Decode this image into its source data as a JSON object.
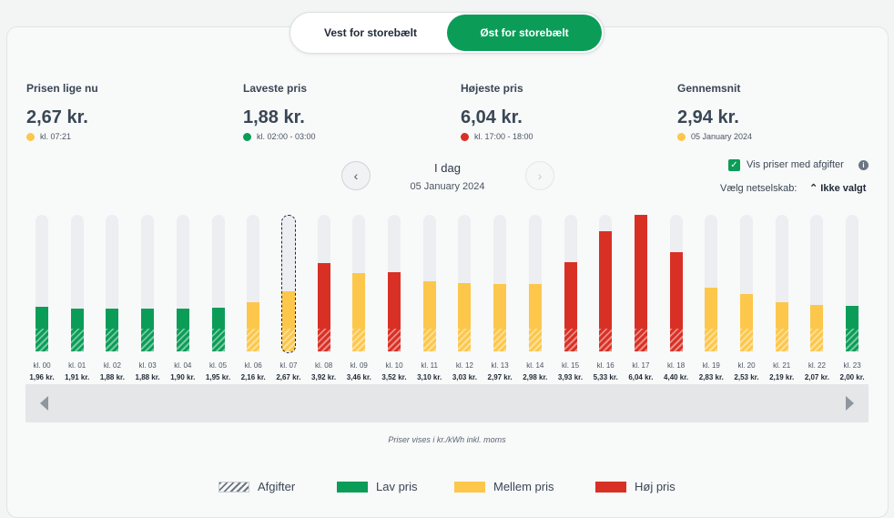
{
  "region_tabs": [
    "Vest for storebælt",
    "Øst for storebælt"
  ],
  "active_tab": "Øst for storebælt",
  "stats": [
    {
      "label": "Prisen lige nu",
      "value": "2,67 kr.",
      "sub": "kl. 07:21",
      "dot_color": "#fcc74b"
    },
    {
      "label": "Laveste pris",
      "value": "1,88 kr.",
      "sub": "kl. 02:00 - 03:00",
      "dot_color": "#0b9d58"
    },
    {
      "label": "Højeste pris",
      "value": "6,04 kr.",
      "sub": "kl. 17:00 - 18:00",
      "dot_color": "#d93025"
    },
    {
      "label": "Gennemsnit",
      "value": "2,94 kr.",
      "sub": "05 January 2024",
      "dot_color": "#fcc74b"
    }
  ],
  "day": {
    "title": "I dag",
    "date": "05 January 2024",
    "prev_icon": "‹",
    "next_icon": "›"
  },
  "options": {
    "show_fees_label": "Vis priser med afgifter",
    "show_fees_checked": true,
    "check_icon": "✓",
    "info_icon": "i",
    "net_label": "Vælg netselskab:",
    "net_value": "Ikke valgt",
    "net_icon": "⌃"
  },
  "colors": {
    "low": "#0b9d58",
    "mid": "#fcc74b",
    "high": "#d93025",
    "accent": "#0b9d58"
  },
  "chart_data": {
    "type": "bar",
    "categories": [
      "kl. 00",
      "kl. 01",
      "kl. 02",
      "kl. 03",
      "kl. 04",
      "kl. 05",
      "kl. 06",
      "kl. 07",
      "kl. 08",
      "kl. 09",
      "kl. 10",
      "kl. 11",
      "kl. 12",
      "kl. 13",
      "kl. 14",
      "kl. 15",
      "kl. 16",
      "kl. 17",
      "kl. 18",
      "kl. 19",
      "kl. 20",
      "kl. 21",
      "kl. 22",
      "kl. 23"
    ],
    "values": [
      1.96,
      1.91,
      1.88,
      1.88,
      1.9,
      1.95,
      2.16,
      2.67,
      3.92,
      3.46,
      3.52,
      3.1,
      3.03,
      2.97,
      2.98,
      3.93,
      5.33,
      6.04,
      4.4,
      2.83,
      2.53,
      2.19,
      2.07,
      2.0
    ],
    "value_labels": [
      "1,96 kr.",
      "1,91 kr.",
      "1,88 kr.",
      "1,88 kr.",
      "1,90 kr.",
      "1,95 kr.",
      "2,16 kr.",
      "2,67 kr.",
      "3,92 kr.",
      "3,46 kr.",
      "3,52 kr.",
      "3,10 kr.",
      "3,03 kr.",
      "2,97 kr.",
      "2,98 kr.",
      "3,93 kr.",
      "5,33 kr.",
      "6,04 kr.",
      "4,40 kr.",
      "2,83 kr.",
      "2,53 kr.",
      "2,19 kr.",
      "2,07 kr.",
      "2,00 kr."
    ],
    "levels": [
      "low",
      "low",
      "low",
      "low",
      "low",
      "low",
      "mid",
      "mid",
      "high",
      "mid",
      "high",
      "mid",
      "mid",
      "mid",
      "mid",
      "high",
      "high",
      "high",
      "high",
      "mid",
      "mid",
      "mid",
      "mid",
      "low"
    ],
    "selected_index": 7,
    "ylim": [
      0,
      6.04
    ]
  },
  "note": "Priser vises i kr./kWh inkl. moms",
  "legend": [
    {
      "label": "Afgifter",
      "kind": "hatch"
    },
    {
      "label": "Lav pris",
      "kind": "low"
    },
    {
      "label": "Mellem pris",
      "kind": "mid"
    },
    {
      "label": "Høj pris",
      "kind": "high"
    }
  ]
}
